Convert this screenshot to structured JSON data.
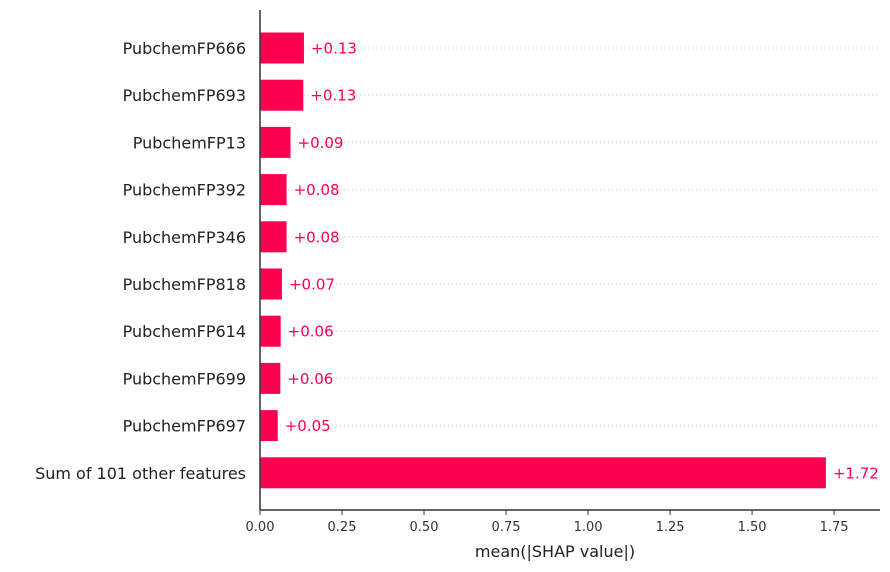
{
  "chart_data": {
    "type": "bar",
    "orientation": "horizontal",
    "categories": [
      "PubchemFP666",
      "PubchemFP693",
      "PubchemFP13",
      "PubchemFP392",
      "PubchemFP346",
      "PubchemFP818",
      "PubchemFP614",
      "PubchemFP699",
      "PubchemFP697",
      "Sum of 101 other features"
    ],
    "values": [
      0.134,
      0.132,
      0.093,
      0.081,
      0.081,
      0.067,
      0.063,
      0.062,
      0.054,
      1.725
    ],
    "value_labels": [
      "+0.13",
      "+0.13",
      "+0.09",
      "+0.08",
      "+0.08",
      "+0.07",
      "+0.06",
      "+0.06",
      "+0.05",
      "+1.72"
    ],
    "xlabel": "mean(|SHAP value|)",
    "ylabel": "",
    "title": "",
    "xlim": [
      0,
      1.89
    ],
    "xticks": [
      0,
      0.25,
      0.5,
      0.75,
      1.0,
      1.25,
      1.5,
      1.75
    ],
    "xtick_labels": [
      "0.00",
      "0.25",
      "0.50",
      "0.75",
      "1.00",
      "1.25",
      "1.50",
      "1.75"
    ],
    "grid": "horizontal dotted row lines",
    "colors": {
      "bar": "#ff0051",
      "value_label": "#ff0051",
      "axis": "#333333",
      "grid": "#cccccc"
    }
  }
}
